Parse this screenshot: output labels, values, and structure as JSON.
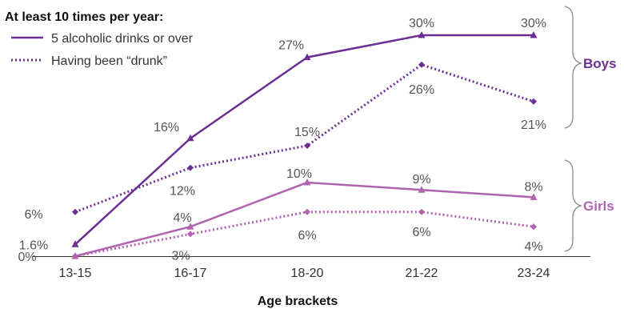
{
  "chart_data": {
    "type": "line",
    "categories": [
      "13-15",
      "16-17",
      "18-20",
      "21-22",
      "23-24"
    ],
    "xlabel": "Age brackets",
    "ylabel": "",
    "ylim": [
      0,
      32
    ],
    "grid": false,
    "legend_title": "At least 10 times per year:",
    "legend_placement": "top-left",
    "legend": [
      {
        "label": "5 alcoholic drinks or over",
        "style": "solid"
      },
      {
        "label": "Having been “drunk”",
        "style": "dotted"
      }
    ],
    "groups": [
      {
        "label": "Boys",
        "color": "#6b2f94"
      },
      {
        "label": "Girls",
        "color": "#b064b0"
      }
    ],
    "series": [
      {
        "group": "Boys",
        "style": "solid",
        "values": [
          1.6,
          16,
          27,
          30,
          30
        ],
        "labels": [
          "1.6%",
          "16%",
          "27%",
          "30%",
          "30%"
        ]
      },
      {
        "group": "Boys",
        "style": "dotted",
        "values": [
          6,
          12,
          15,
          26,
          21
        ],
        "labels": [
          "6%",
          "12%",
          "15%",
          "26%",
          "21%"
        ]
      },
      {
        "group": "Girls",
        "style": "solid",
        "values": [
          0,
          4,
          10,
          9,
          8
        ],
        "labels": [
          "0%",
          "4%",
          "10%",
          "9%",
          "8%"
        ]
      },
      {
        "group": "Girls",
        "style": "dotted",
        "values": [
          0,
          3,
          6,
          6,
          4
        ],
        "labels": [
          "",
          "3%",
          "6%",
          "6%",
          "4%"
        ]
      }
    ]
  }
}
